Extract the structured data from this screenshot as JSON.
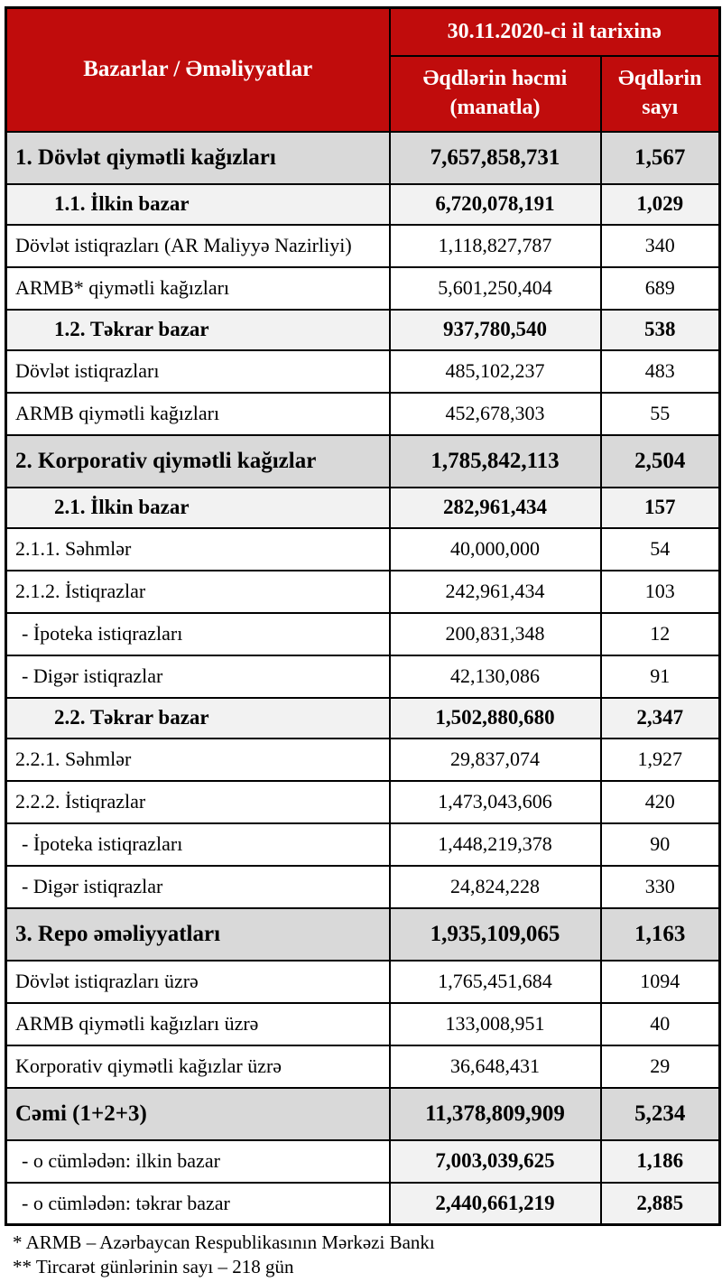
{
  "header": {
    "markets_label": "Bazarlar / Əməliyyatlar",
    "date_title": "30.11.2020-ci il tarixinə",
    "volume_label": "Əqdlərin həcmi\n(manatla)",
    "count_label": "Əqdlərin\nsayı"
  },
  "colors": {
    "header_red": "#C00C0C",
    "section_gray": "#D9D9D9",
    "subsection_gray": "#F2F2F2",
    "border_black": "#000000",
    "header_text": "#FFFFFF"
  },
  "rows": [
    {
      "label": "1. Dövlət qiymətli kağızları",
      "volume": "7,657,858,731",
      "count": "1,567",
      "style": "section"
    },
    {
      "label": "1.1. İlkin bazar",
      "volume": "6,720,078,191",
      "count": "1,029",
      "style": "subsection"
    },
    {
      "label": "Dövlət istiqrazları (AR Maliyyə Nazirliyi)",
      "volume": "1,118,827,787",
      "count": "340",
      "style": "regular"
    },
    {
      "label": "ARMB* qiymətli kağızları",
      "volume": "5,601,250,404",
      "count": "689",
      "style": "regular"
    },
    {
      "label": "1.2. Təkrar bazar",
      "volume": "937,780,540",
      "count": "538",
      "style": "subsection"
    },
    {
      "label": "Dövlət istiqrazları",
      "volume": "485,102,237",
      "count": "483",
      "style": "regular"
    },
    {
      "label": "ARMB qiymətli kağızları",
      "volume": "452,678,303",
      "count": "55",
      "style": "regular"
    },
    {
      "label": "2. Korporativ qiymətli kağızlar",
      "volume": "1,785,842,113",
      "count": "2,504",
      "style": "section"
    },
    {
      "label": "2.1. İlkin bazar",
      "volume": "282,961,434",
      "count": "157",
      "style": "subsection"
    },
    {
      "label": "2.1.1. Səhmlər",
      "volume": "40,000,000",
      "count": "54",
      "style": "regular"
    },
    {
      "label": "2.1.2. İstiqrazlar",
      "volume": "242,961,434",
      "count": "103",
      "style": "regular"
    },
    {
      "label": "- İpoteka istiqrazları",
      "volume": "200,831,348",
      "count": "12",
      "style": "dash"
    },
    {
      "label": "- Digər istiqrazlar",
      "volume": "42,130,086",
      "count": "91",
      "style": "dash"
    },
    {
      "label": "2.2. Təkrar bazar",
      "volume": "1,502,880,680",
      "count": "2,347",
      "style": "subsection"
    },
    {
      "label": "2.2.1. Səhmlər",
      "volume": "29,837,074",
      "count": "1,927",
      "style": "regular"
    },
    {
      "label": "2.2.2. İstiqrazlar",
      "volume": "1,473,043,606",
      "count": "420",
      "style": "regular"
    },
    {
      "label": "- İpoteka istiqrazları",
      "volume": "1,448,219,378",
      "count": "90",
      "style": "dash"
    },
    {
      "label": "- Digər istiqrazlar",
      "volume": "24,824,228",
      "count": "330",
      "style": "dash"
    },
    {
      "label": "3. Repo əməliyyatları",
      "volume": "1,935,109,065",
      "count": "1,163",
      "style": "section"
    },
    {
      "label": "Dövlət istiqrazları üzrə",
      "volume": "1,765,451,684",
      "count": "1094",
      "style": "regular"
    },
    {
      "label": "ARMB qiymətli kağızları üzrə",
      "volume": "133,008,951",
      "count": "40",
      "style": "regular"
    },
    {
      "label": "Korporativ qiymətli kağızlar üzrə",
      "volume": "36,648,431",
      "count": "29",
      "style": "regular"
    },
    {
      "label": "Cəmi (1+2+3)",
      "volume": "11,378,809,909",
      "count": "5,234",
      "style": "section"
    },
    {
      "label": "- o cümlədən: ilkin bazar",
      "volume": "7,003,039,625",
      "count": "1,186",
      "style": "total-sub"
    },
    {
      "label": "- o cümlədən: təkrar bazar",
      "volume": "2,440,661,219",
      "count": "2,885",
      "style": "total-sub"
    }
  ],
  "footnotes": [
    "* ARMB – Azərbaycan Respublikasının Mərkəzi Bankı",
    "** Tircarət günlərinin sayı – 218 gün"
  ]
}
